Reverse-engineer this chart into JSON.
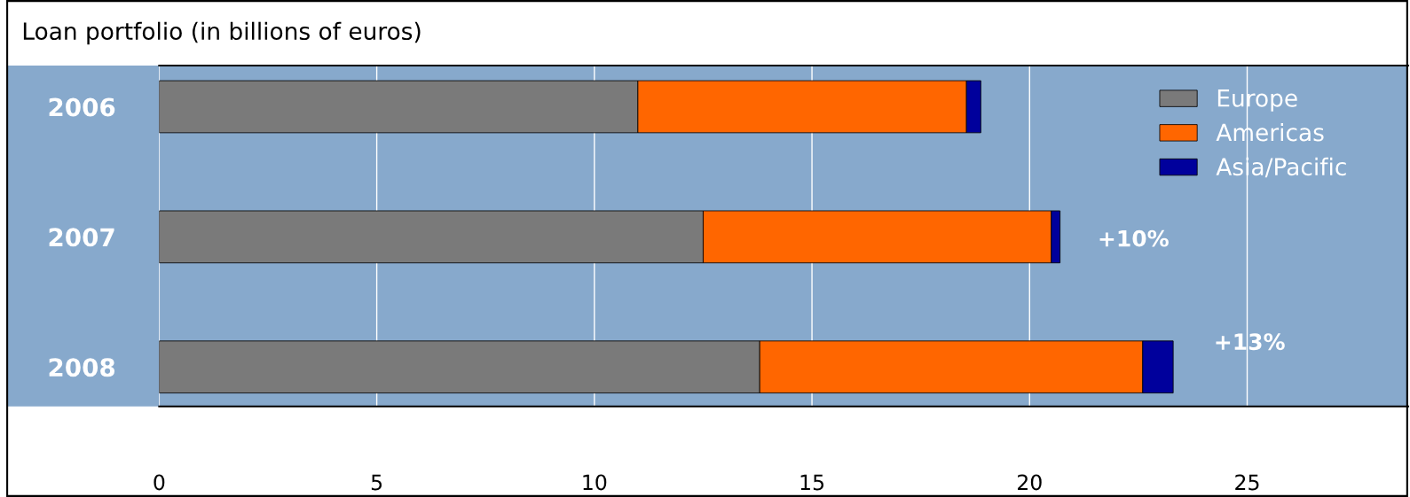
{
  "chart_data": {
    "type": "bar",
    "orientation": "horizontal",
    "stacked": true,
    "title": "Loan portfolio (in billions of euros)",
    "categories": [
      "2006",
      "2007",
      "2008"
    ],
    "series": [
      {
        "name": "Europe",
        "color": "#7a7a7a",
        "values": [
          11.0,
          12.5,
          13.8
        ]
      },
      {
        "name": "Americas",
        "color": "#ff6600",
        "values": [
          7.55,
          8.0,
          8.8
        ]
      },
      {
        "name": "Asia/Pacific",
        "color": "#00009c",
        "values": [
          0.33,
          0.2,
          0.7
        ]
      }
    ],
    "xlim": [
      0,
      28.7
    ],
    "xticks": [
      0,
      5,
      10,
      15,
      20,
      25
    ],
    "grid": "x",
    "legend": "top right",
    "annotations": [
      "+10%",
      "+13%"
    ]
  }
}
